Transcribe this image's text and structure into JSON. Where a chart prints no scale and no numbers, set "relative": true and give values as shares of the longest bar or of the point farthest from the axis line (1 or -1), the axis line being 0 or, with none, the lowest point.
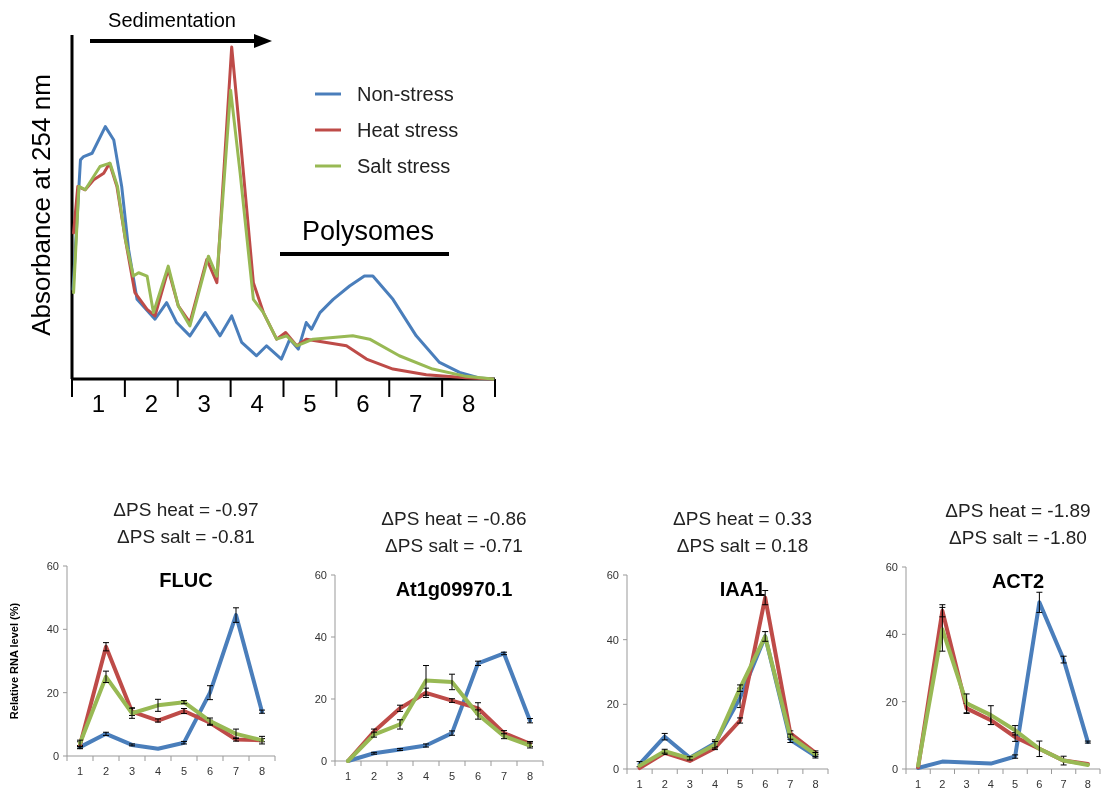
{
  "chart_data": [
    {
      "type": "line",
      "relative": true,
      "ylabel": "Absorbance at 254 nm",
      "annotations": [
        "Sedimentation",
        "Polysomes"
      ],
      "legend": "top right",
      "grid": false,
      "marker": "none",
      "line_style": "solid",
      "xlim": [
        0,
        8
      ],
      "xticks": [
        {
          "value": 0.5,
          "label": "1"
        },
        {
          "value": 1.5,
          "label": "2"
        },
        {
          "value": 2.5,
          "label": "3"
        },
        {
          "value": 3.5,
          "label": "4"
        },
        {
          "value": 4.5,
          "label": "5"
        },
        {
          "value": 5.5,
          "label": "6"
        },
        {
          "value": 6.5,
          "label": "7"
        },
        {
          "value": 7.5,
          "label": "8"
        }
      ],
      "series": [
        {
          "name": "Non-stress",
          "color": "#4a7ebb",
          "x": [
            0.02,
            0.16,
            0.22,
            0.38,
            0.63,
            0.79,
            0.94,
            1.07,
            1.23,
            1.57,
            1.79,
            1.98,
            2.23,
            2.52,
            2.8,
            3.02,
            3.21,
            3.49,
            3.68,
            3.96,
            4.12,
            4.28,
            4.43,
            4.53,
            4.69,
            4.94,
            5.25,
            5.53,
            5.69,
            6.07,
            6.51,
            6.95,
            7.33,
            7.7,
            7.96
          ],
          "values": [
            0.27,
            0.66,
            0.67,
            0.68,
            0.76,
            0.72,
            0.58,
            0.39,
            0.24,
            0.18,
            0.23,
            0.17,
            0.13,
            0.2,
            0.13,
            0.19,
            0.11,
            0.07,
            0.1,
            0.06,
            0.12,
            0.09,
            0.17,
            0.15,
            0.2,
            0.24,
            0.28,
            0.31,
            0.31,
            0.24,
            0.13,
            0.05,
            0.02,
            0.003,
            0
          ]
        },
        {
          "name": "Heat stress",
          "color": "#be4b48",
          "x": [
            0.03,
            0.11,
            0.25,
            0.41,
            0.6,
            0.71,
            0.85,
            1.01,
            1.19,
            1.42,
            1.57,
            1.82,
            2.01,
            2.23,
            2.55,
            2.74,
            2.85,
            3.02,
            3.18,
            3.43,
            3.62,
            3.87,
            4.04,
            4.25,
            4.43,
            4.81,
            5.19,
            5.57,
            6.07,
            6.7,
            7.45,
            7.96
          ],
          "values": [
            0.44,
            0.58,
            0.57,
            0.6,
            0.62,
            0.65,
            0.58,
            0.42,
            0.26,
            0.21,
            0.19,
            0.33,
            0.22,
            0.17,
            0.36,
            0.29,
            0.57,
            1,
            0.73,
            0.29,
            0.2,
            0.12,
            0.14,
            0.1,
            0.12,
            0.11,
            0.1,
            0.06,
            0.03,
            0.013,
            0.004,
            0
          ]
        },
        {
          "name": "Salt stress",
          "color": "#98b954",
          "x": [
            0.03,
            0.13,
            0.25,
            0.53,
            0.72,
            0.86,
            1.01,
            1.16,
            1.26,
            1.42,
            1.54,
            1.82,
            2.01,
            2.23,
            2.58,
            2.74,
            2.85,
            3.0,
            3.18,
            3.43,
            3.62,
            3.87,
            4.06,
            4.25,
            4.56,
            5.31,
            5.63,
            6.19,
            6.82,
            7.45,
            7.96
          ],
          "values": [
            0.26,
            0.58,
            0.57,
            0.64,
            0.65,
            0.58,
            0.42,
            0.31,
            0.32,
            0.31,
            0.2,
            0.34,
            0.22,
            0.16,
            0.37,
            0.31,
            0.54,
            0.87,
            0.62,
            0.24,
            0.2,
            0.12,
            0.13,
            0.1,
            0.12,
            0.13,
            0.12,
            0.07,
            0.03,
            0.008,
            0
          ]
        }
      ]
    },
    {
      "type": "line",
      "title": "FLUC",
      "ylabel": "Relative RNA level (%)",
      "annotations": [
        "ΔPS heat = -0.97",
        "ΔPS salt = -0.81"
      ],
      "categories": [
        "1",
        "2",
        "3",
        "4",
        "5",
        "6",
        "7",
        "8"
      ],
      "ylim": [
        0,
        60
      ],
      "yticks": [
        0,
        20,
        40,
        60
      ],
      "grid": false,
      "marker": "none",
      "series": [
        {
          "color": "#4a7ebb",
          "values": [
            2.8,
            7,
            3.5,
            2.3,
            4.2,
            20,
            44.5,
            14
          ],
          "errors": [
            0.5,
            0.5,
            0.3,
            null,
            0.4,
            2.2,
            2.3,
            0.5
          ]
        },
        {
          "color": "#be4b48",
          "values": [
            3.5,
            34.5,
            14,
            11.2,
            14.2,
            10.5,
            5.2,
            5
          ],
          "errors": [
            1,
            1.3,
            1.2,
            0.5,
            0.8,
            0.8,
            0.5,
            0.5
          ]
        },
        {
          "color": "#98b954",
          "values": [
            4,
            25,
            13.5,
            16,
            17,
            11,
            7,
            5
          ],
          "errors": [
            1,
            1.8,
            1.6,
            1.9,
            0.5,
            1,
            1.5,
            1.2
          ]
        }
      ]
    },
    {
      "type": "line",
      "title": "At1g09970.1",
      "annotations": [
        "ΔPS heat = -0.86",
        "ΔPS salt = -0.71"
      ],
      "categories": [
        "1",
        "2",
        "3",
        "4",
        "5",
        "6",
        "7",
        "8"
      ],
      "ylim": [
        0,
        60
      ],
      "yticks": [
        0,
        20,
        40,
        60
      ],
      "grid": false,
      "marker": "none",
      "series": [
        {
          "color": "#4a7ebb",
          "values": [
            0,
            2.5,
            3.7,
            5,
            9,
            31.5,
            34.7,
            13
          ],
          "errors": [
            null,
            0.3,
            0.3,
            0.5,
            0.7,
            0.7,
            0.4,
            0.7
          ]
        },
        {
          "color": "#be4b48",
          "values": [
            0,
            9.5,
            17,
            22,
            19.5,
            17,
            9,
            5.5
          ],
          "errors": [
            null,
            0.8,
            1,
            1.5,
            0.6,
            1.8,
            0.8,
            0.8
          ]
        },
        {
          "color": "#98b954",
          "values": [
            0,
            8.5,
            11.8,
            26,
            25.5,
            15,
            8,
            5
          ],
          "errors": [
            null,
            0.8,
            1.5,
            4.8,
            2.5,
            1.5,
            0.8,
            0.8
          ]
        }
      ]
    },
    {
      "type": "line",
      "title": "IAA1",
      "annotations": [
        "ΔPS heat = 0.33",
        "ΔPS salt = 0.18"
      ],
      "categories": [
        "1",
        "2",
        "3",
        "4",
        "5",
        "6",
        "7",
        "8"
      ],
      "ylim": [
        0,
        60
      ],
      "yticks": [
        0,
        20,
        40,
        60
      ],
      "grid": false,
      "marker": "none",
      "series": [
        {
          "color": "#4a7ebb",
          "values": [
            1.5,
            10,
            3.5,
            8,
            22,
            41,
            9,
            4
          ],
          "errors": [
            0.8,
            1,
            null,
            1,
            3,
            null,
            0.8,
            0.6
          ]
        },
        {
          "color": "#be4b48",
          "values": [
            0.3,
            5,
            2.5,
            6.5,
            15,
            53,
            11,
            5
          ],
          "errors": [
            null,
            0.5,
            null,
            0.5,
            0.8,
            2.2,
            0.8,
            0.6
          ]
        },
        {
          "color": "#98b954",
          "values": [
            1,
            5.5,
            3.3,
            7.5,
            25,
            41,
            10,
            4.5
          ],
          "errors": [
            null,
            0.6,
            0.5,
            1,
            1,
            1.5,
            0.8,
            0.6
          ]
        }
      ]
    },
    {
      "type": "line",
      "title": "ACT2",
      "annotations": [
        "ΔPS heat = -1.89",
        "ΔPS salt = -1.80"
      ],
      "categories": [
        "1",
        "2",
        "3",
        "4",
        "5",
        "6",
        "7",
        "8"
      ],
      "ylim": [
        0,
        60
      ],
      "yticks": [
        0,
        20,
        40,
        60
      ],
      "grid": false,
      "marker": "none",
      "series": [
        {
          "color": "#4a7ebb",
          "values": [
            0.3,
            2.2,
            1.9,
            1.6,
            3.7,
            49.5,
            32.5,
            8
          ],
          "errors": [
            null,
            null,
            null,
            null,
            0.5,
            3,
            1,
            0.3
          ]
        },
        {
          "color": "#be4b48",
          "values": [
            0.5,
            47,
            18,
            14.5,
            9.5,
            6,
            2.5,
            1.5
          ],
          "errors": [
            null,
            1.8,
            1.5,
            1.3,
            1.3,
            null,
            1.3,
            null
          ]
        },
        {
          "color": "#98b954",
          "values": [
            1,
            41.5,
            19.5,
            16,
            11.5,
            6,
            2.5,
            1.2
          ],
          "errors": [
            null,
            6.5,
            2.8,
            2.8,
            1.4,
            2.3,
            null,
            null
          ]
        }
      ]
    }
  ]
}
